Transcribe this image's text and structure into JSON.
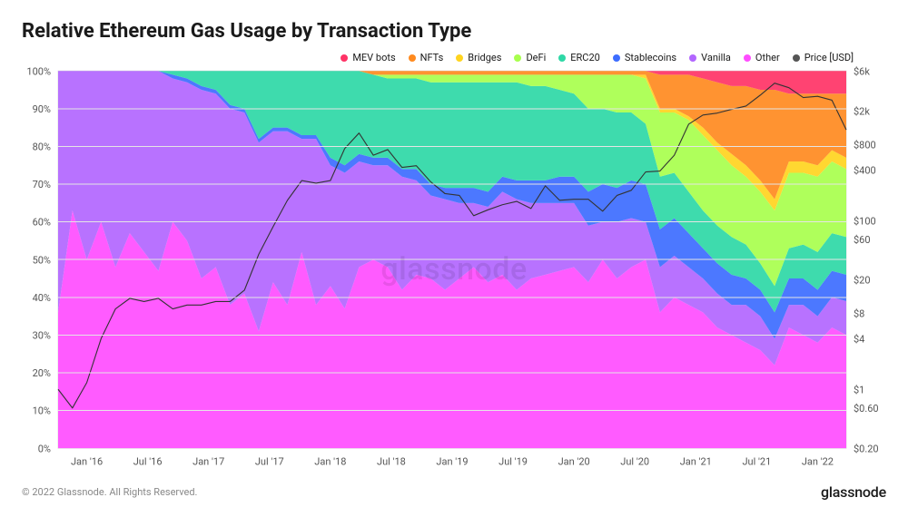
{
  "title": "Relative Ethereum Gas Usage by Transaction Type",
  "copyright": "© 2022 Glassnode. All Rights Reserved.",
  "brand": "glassnode",
  "watermark": "glassnode",
  "legend": [
    {
      "key": "mev",
      "label": "MEV bots",
      "color": "#ff3366"
    },
    {
      "key": "nfts",
      "label": "NFTs",
      "color": "#ff8a1f"
    },
    {
      "key": "bridges",
      "label": "Bridges",
      "color": "#ffd41f"
    },
    {
      "key": "defi",
      "label": "DeFi",
      "color": "#a8ff4d"
    },
    {
      "key": "erc20",
      "label": "ERC20",
      "color": "#2ed8a6"
    },
    {
      "key": "stable",
      "label": "Stablecoins",
      "color": "#3d6dff"
    },
    {
      "key": "vanilla",
      "label": "Vanilla",
      "color": "#b266ff"
    },
    {
      "key": "other",
      "label": "Other",
      "color": "#ff4dff"
    }
  ],
  "price_legend": {
    "label": "Price [USD]",
    "color": "#555555"
  },
  "chart": {
    "type": "stacked-area-100pct-with-log-line",
    "background_color": "#ffffff",
    "grid_color": "#e5e5e5",
    "font_family": "system-ui",
    "left_axis": {
      "label": "",
      "ticks": [
        "0%",
        "10%",
        "20%",
        "30%",
        "40%",
        "50%",
        "60%",
        "70%",
        "80%",
        "90%",
        "100%"
      ],
      "min": 0,
      "max": 100
    },
    "right_axis": {
      "label": "",
      "scale": "log",
      "min": 0.2,
      "max": 6000,
      "ticks": [
        "$0.20",
        "$0.60",
        "$1",
        "$4",
        "$8",
        "$20",
        "$60",
        "$100",
        "$400",
        "$800",
        "$2k",
        "$6k"
      ],
      "tick_values": [
        0.2,
        0.6,
        1,
        4,
        8,
        20,
        60,
        100,
        400,
        800,
        2000,
        6000
      ]
    },
    "x_axis": {
      "ticks": [
        "Jan '16",
        "Jul '16",
        "Jan '17",
        "Jul '17",
        "Jan '18",
        "Jul '18",
        "Jan '19",
        "Jul '19",
        "Jan '20",
        "Jul '20",
        "Jan '21",
        "Jul '21",
        "Jan '22"
      ]
    },
    "stack_order": [
      "other",
      "vanilla",
      "stable",
      "erc20",
      "defi",
      "bridges",
      "nfts",
      "mev"
    ],
    "series_pct": {
      "other": [
        36,
        63,
        50,
        60,
        48,
        57,
        52,
        47,
        60,
        55,
        45,
        48,
        38,
        41,
        31,
        44,
        38,
        52,
        38,
        43,
        37,
        48,
        50,
        48,
        42,
        46,
        45,
        42,
        45,
        48,
        44,
        46,
        42,
        45,
        46,
        47,
        48,
        44,
        50,
        45,
        48,
        50,
        36,
        40,
        38,
        36,
        32,
        30,
        28,
        26,
        22,
        32,
        30,
        28,
        32,
        30
      ],
      "vanilla": [
        64,
        37,
        50,
        40,
        52,
        43,
        48,
        53,
        38,
        42,
        50,
        46,
        52,
        48,
        50,
        40,
        46,
        30,
        44,
        32,
        36,
        28,
        25,
        27,
        30,
        25,
        22,
        24,
        20,
        17,
        20,
        22,
        24,
        20,
        19,
        18,
        17,
        15,
        10,
        15,
        13,
        10,
        12,
        11,
        10,
        9,
        9,
        8,
        10,
        9,
        7,
        6,
        8,
        7,
        8,
        9
      ],
      "stable": [
        0,
        0,
        0,
        0,
        0,
        0,
        0,
        0,
        1,
        1,
        1,
        1,
        1,
        1,
        1,
        1,
        1,
        1,
        1,
        2,
        2,
        2,
        2,
        2,
        2,
        3,
        3,
        3,
        4,
        4,
        4,
        4,
        5,
        6,
        6,
        7,
        7,
        9,
        10,
        9,
        10,
        10,
        10,
        10,
        9,
        8,
        8,
        8,
        7,
        7,
        7,
        7,
        7,
        7,
        7,
        7
      ],
      "erc20": [
        0,
        0,
        0,
        0,
        0,
        0,
        0,
        0,
        1,
        2,
        4,
        5,
        9,
        10,
        18,
        15,
        15,
        17,
        17,
        23,
        25,
        22,
        22,
        21,
        24,
        24,
        27,
        28,
        28,
        28,
        29,
        25,
        26,
        25,
        25,
        23,
        22,
        22,
        20,
        20,
        18,
        16,
        14,
        12,
        11,
        10,
        10,
        10,
        9,
        7,
        7,
        8,
        9,
        10,
        10,
        10
      ],
      "defi": [
        0,
        0,
        0,
        0,
        0,
        0,
        0,
        0,
        0,
        0,
        0,
        0,
        0,
        0,
        0,
        0,
        0,
        0,
        0,
        0,
        0,
        0,
        0,
        1,
        1,
        1,
        2,
        2,
        2,
        2,
        2,
        2,
        2,
        3,
        3,
        4,
        5,
        9,
        9,
        10,
        10,
        12,
        17,
        16,
        19,
        20,
        20,
        19,
        18,
        19,
        20,
        20,
        19,
        20,
        19,
        18
      ],
      "bridges": [
        0,
        0,
        0,
        0,
        0,
        0,
        0,
        0,
        0,
        0,
        0,
        0,
        0,
        0,
        0,
        0,
        0,
        0,
        0,
        0,
        0,
        0,
        0,
        0,
        0,
        0,
        0,
        0,
        0,
        0,
        0,
        0,
        0,
        0,
        0,
        0,
        0,
        0,
        0,
        0,
        0,
        1,
        1,
        1,
        1,
        2,
        2,
        3,
        3,
        3,
        3,
        3,
        3,
        3,
        3,
        3
      ],
      "nfts": [
        0,
        0,
        0,
        0,
        0,
        0,
        0,
        0,
        0,
        0,
        0,
        0,
        0,
        0,
        0,
        0,
        0,
        0,
        0,
        0,
        0,
        0,
        1,
        1,
        1,
        1,
        1,
        1,
        1,
        1,
        1,
        1,
        1,
        1,
        1,
        1,
        1,
        1,
        1,
        1,
        1,
        1,
        9,
        9,
        11,
        13,
        16,
        18,
        21,
        24,
        29,
        18,
        18,
        19,
        15,
        17
      ],
      "mev": [
        0,
        0,
        0,
        0,
        0,
        0,
        0,
        0,
        0,
        0,
        0,
        0,
        0,
        0,
        0,
        0,
        0,
        0,
        0,
        0,
        0,
        0,
        0,
        0,
        0,
        0,
        0,
        0,
        0,
        0,
        0,
        0,
        0,
        0,
        0,
        0,
        0,
        0,
        0,
        0,
        0,
        0,
        1,
        1,
        1,
        2,
        3,
        4,
        4,
        5,
        5,
        6,
        6,
        6,
        6,
        6
      ]
    },
    "price_usd": [
      1.0,
      0.6,
      1.2,
      4,
      9,
      12,
      11,
      12,
      9,
      10,
      10,
      11,
      11,
      15,
      40,
      85,
      175,
      300,
      280,
      300,
      720,
      1100,
      600,
      700,
      430,
      450,
      290,
      210,
      200,
      115,
      135,
      155,
      170,
      140,
      260,
      175,
      180,
      180,
      130,
      200,
      230,
      380,
      390,
      600,
      1400,
      1800,
      1900,
      2100,
      2300,
      3100,
      4300,
      3800,
      2900,
      3000,
      2700,
      1200
    ]
  }
}
